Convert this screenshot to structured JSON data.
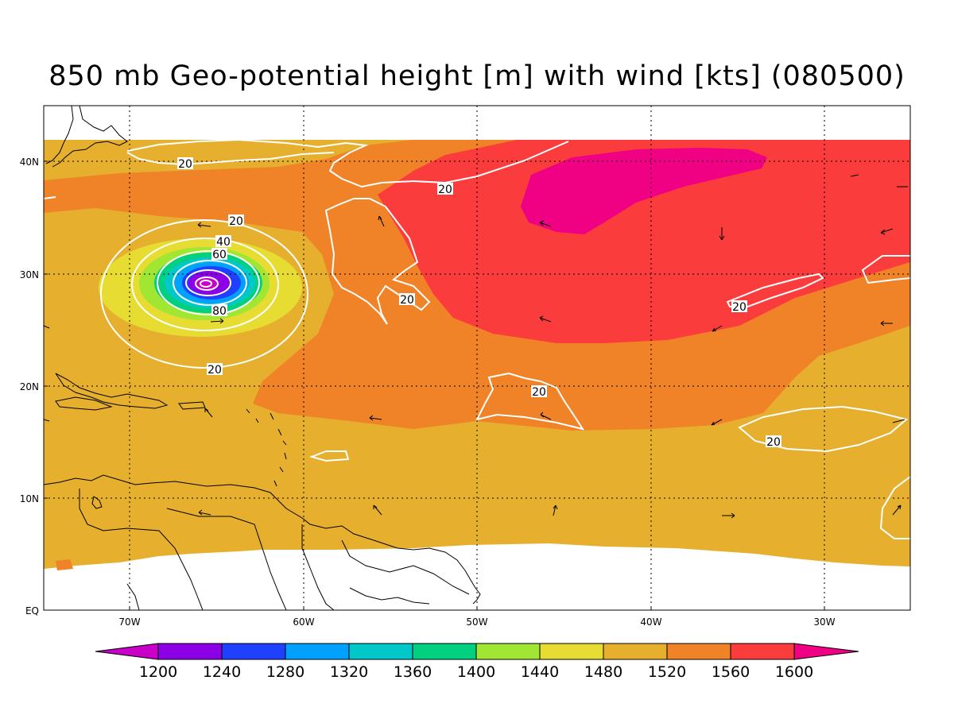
{
  "title": "850 mb Geo-potential height [m] with wind [kts] (080500)",
  "longitude_labels": [
    "70W",
    "60W",
    "50W",
    "40W",
    "30W"
  ],
  "latitude_labels": [
    "40N",
    "30N",
    "20N",
    "10N",
    "EQ"
  ],
  "wind_contour_labels": {
    "outer_west": "20",
    "storm_20": "20",
    "storm_40": "40",
    "storm_60": "60",
    "storm_80": "80",
    "storm_south_20": "20",
    "north_20": "20",
    "mid_20": "20",
    "east_20": "20",
    "tropic_20": "20",
    "southeast_20": "20"
  },
  "colorbar": {
    "labels": [
      "1200",
      "1240",
      "1280",
      "1320",
      "1360",
      "1400",
      "1440",
      "1480",
      "1520",
      "1560",
      "1600"
    ],
    "colors": {
      "below_1200": "#c800c8",
      "c1200_1240": "#8c00e6",
      "c1240_1280": "#2040ff",
      "c1280_1320": "#00a0ff",
      "c1320_1360": "#00c8c8",
      "c1360_1400": "#00d080",
      "c1400_1440": "#a0e632",
      "c1440_1480": "#e6dc32",
      "c1480_1520": "#e6af2d",
      "c1520_1560": "#f08228",
      "c1560_1600": "#fa3c3c",
      "above_1600": "#f00082"
    }
  }
}
